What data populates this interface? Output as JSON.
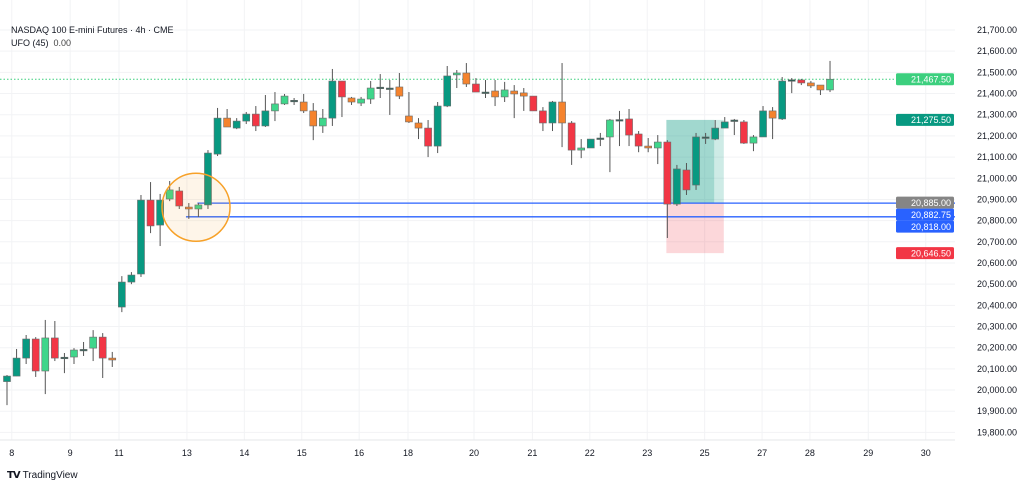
{
  "legend": {
    "title": "NASDAQ 100 E-mini Futures · 4h · CME",
    "indicator": "UFO (45)",
    "indicator_value": "0.00"
  },
  "branding": {
    "name": "TradingView"
  },
  "colors": {
    "strong_up": "#089981",
    "weak_up": "#3fd68b",
    "strong_down": "#f23645",
    "weak_down": "#f5832d",
    "neutral": "#2d5e55",
    "blue_line": "#2962ff",
    "circle": "#f7a128",
    "last_price": "#3ccf7e"
  },
  "chart_data": {
    "type": "candlestick",
    "title": "NASDAQ 100 E-mini Futures · 4h · CME",
    "ylim": [
      19750,
      21750
    ],
    "grid": true,
    "y_ticks": [
      "21,700.00",
      "21,600.00",
      "21,500.00",
      "21,400.00",
      "21,300.00",
      "21,200.00",
      "21,100.00",
      "21,000.00",
      "20,900.00",
      "20,800.00",
      "20,700.00",
      "20,600.00",
      "20,500.00",
      "20,400.00",
      "20,300.00",
      "20,200.00",
      "20,100.00",
      "20,000.00",
      "19,900.00",
      "19,800.00"
    ],
    "y_tick_values": [
      21700,
      21600,
      21500,
      21400,
      21300,
      21200,
      21100,
      21000,
      20900,
      20800,
      20700,
      20600,
      20500,
      20400,
      20300,
      20200,
      20100,
      20000,
      19900,
      19800
    ],
    "x_ticks": [
      {
        "label": "8",
        "bar": 0.5
      },
      {
        "label": "9",
        "bar": 6.6
      },
      {
        "label": "11",
        "bar": 11.7
      },
      {
        "label": "13",
        "bar": 18.8
      },
      {
        "label": "14",
        "bar": 24.8
      },
      {
        "label": "15",
        "bar": 30.8
      },
      {
        "label": "16",
        "bar": 36.8
      },
      {
        "label": "18",
        "bar": 41.9
      },
      {
        "label": "20",
        "bar": 48.8
      },
      {
        "label": "21",
        "bar": 54.9
      },
      {
        "label": "22",
        "bar": 60.9
      },
      {
        "label": "23",
        "bar": 66.9
      },
      {
        "label": "25",
        "bar": 72.9
      },
      {
        "label": "27",
        "bar": 78.9
      },
      {
        "label": "28",
        "bar": 83.9
      },
      {
        "label": "29",
        "bar": 90
      },
      {
        "label": "30",
        "bar": 96
      }
    ],
    "candle_fields": [
      "open",
      "high",
      "low",
      "close",
      "ufo_color"
    ],
    "candles": [
      [
        20040,
        20071,
        19929,
        20066,
        "strong_up"
      ],
      [
        20066,
        20194,
        20066,
        20151,
        "strong_up"
      ],
      [
        20151,
        20260,
        20123,
        20241,
        "strong_up"
      ],
      [
        20241,
        20250,
        20062,
        20090,
        "strong_down"
      ],
      [
        20090,
        20331,
        19981,
        20246,
        "weak_up"
      ],
      [
        20246,
        20326,
        20137,
        20151,
        "strong_down"
      ],
      [
        20151,
        20175,
        20080,
        20155,
        "neutral"
      ],
      [
        20156,
        20198,
        20123,
        20189,
        "weak_up"
      ],
      [
        20189,
        20227,
        20161,
        20192,
        "neutral"
      ],
      [
        20198,
        20283,
        20137,
        20250,
        "weak_up"
      ],
      [
        20250,
        20269,
        20057,
        20151,
        "strong_down"
      ],
      [
        20151,
        20180,
        20109,
        20142,
        "weak_down"
      ],
      [
        20392,
        20538,
        20368,
        20510,
        "strong_up"
      ],
      [
        20510,
        20557,
        20500,
        20543,
        "strong_up"
      ],
      [
        20548,
        20921,
        20534,
        20897,
        "strong_up"
      ],
      [
        20897,
        20982,
        20741,
        20775,
        "strong_down"
      ],
      [
        20779,
        20926,
        20680,
        20897,
        "strong_up"
      ],
      [
        20902,
        20987,
        20892,
        20945,
        "weak_up"
      ],
      [
        20940,
        20959,
        20855,
        20869,
        "strong_down"
      ],
      [
        20864,
        20883,
        20808,
        20855,
        "weak_down"
      ],
      [
        20855,
        20883,
        20817,
        20874,
        "weak_up"
      ],
      [
        20874,
        21133,
        20855,
        21119,
        "strong_up"
      ],
      [
        21114,
        21332,
        21105,
        21284,
        "strong_up"
      ],
      [
        21284,
        21327,
        21242,
        21242,
        "weak_down"
      ],
      [
        21237,
        21284,
        21232,
        21270,
        "strong_up"
      ],
      [
        21270,
        21313,
        21256,
        21303,
        "strong_up"
      ],
      [
        21303,
        21341,
        21223,
        21247,
        "strong_down"
      ],
      [
        21247,
        21393,
        21242,
        21318,
        "strong_up"
      ],
      [
        21318,
        21407,
        21270,
        21351,
        "weak_up"
      ],
      [
        21351,
        21398,
        21346,
        21388,
        "weak_up"
      ],
      [
        21365,
        21379,
        21346,
        21368,
        "neutral"
      ],
      [
        21360,
        21398,
        21308,
        21318,
        "weak_down"
      ],
      [
        21318,
        21355,
        21180,
        21247,
        "weak_down"
      ],
      [
        21247,
        21327,
        21214,
        21284,
        "weak_up"
      ],
      [
        21284,
        21516,
        21247,
        21459,
        "strong_up"
      ],
      [
        21459,
        21459,
        21289,
        21384,
        "strong_down"
      ],
      [
        21379,
        21384,
        21346,
        21360,
        "weak_down"
      ],
      [
        21355,
        21384,
        21341,
        21374,
        "weak_up"
      ],
      [
        21374,
        21459,
        21351,
        21426,
        "weak_up"
      ],
      [
        21426,
        21492,
        21379,
        21430,
        "neutral"
      ],
      [
        21426,
        21464,
        21299,
        21422,
        "neutral"
      ],
      [
        21431,
        21497,
        21374,
        21388,
        "weak_down"
      ],
      [
        21294,
        21407,
        21261,
        21266,
        "weak_down"
      ],
      [
        21261,
        21284,
        21185,
        21237,
        "weak_down"
      ],
      [
        21237,
        21275,
        21100,
        21152,
        "strong_down"
      ],
      [
        21152,
        21360,
        21119,
        21341,
        "strong_up"
      ],
      [
        21341,
        21530,
        21336,
        21483,
        "strong_up"
      ],
      [
        21488,
        21511,
        21426,
        21497,
        "weak_up"
      ],
      [
        21497,
        21544,
        21431,
        21445,
        "weak_down"
      ],
      [
        21445,
        21473,
        21407,
        21407,
        "strong_down"
      ],
      [
        21407,
        21464,
        21379,
        21403,
        "neutral"
      ],
      [
        21412,
        21464,
        21341,
        21384,
        "weak_down"
      ],
      [
        21384,
        21455,
        21360,
        21417,
        "weak_up"
      ],
      [
        21412,
        21440,
        21284,
        21398,
        "weak_down"
      ],
      [
        21403,
        21426,
        21318,
        21388,
        "weak_down"
      ],
      [
        21388,
        21388,
        21318,
        21318,
        "strong_down"
      ],
      [
        21318,
        21336,
        21223,
        21261,
        "strong_down"
      ],
      [
        21261,
        21365,
        21223,
        21360,
        "strong_up"
      ],
      [
        21360,
        21544,
        21147,
        21261,
        "weak_down"
      ],
      [
        21261,
        21270,
        21063,
        21133,
        "strong_down"
      ],
      [
        21133,
        21185,
        21095,
        21143,
        "weak_up"
      ],
      [
        21143,
        21185,
        21143,
        21185,
        "strong_up"
      ],
      [
        21185,
        21214,
        21152,
        21190,
        "neutral"
      ],
      [
        21195,
        21280,
        21029,
        21275,
        "weak_up"
      ],
      [
        21272,
        21318,
        21152,
        21277,
        "neutral"
      ],
      [
        21280,
        21327,
        21152,
        21204,
        "strong_down"
      ],
      [
        21209,
        21223,
        21123,
        21152,
        "strong_down"
      ],
      [
        21152,
        21190,
        21123,
        21143,
        "weak_down"
      ],
      [
        21143,
        21204,
        21067,
        21171,
        "weak_up"
      ],
      [
        21171,
        21180,
        20718,
        20878,
        "strong_down"
      ],
      [
        20878,
        21063,
        20869,
        21044,
        "strong_up"
      ],
      [
        21039,
        21072,
        20921,
        20945,
        "strong_down"
      ],
      [
        20968,
        21214,
        20945,
        21195,
        "strong_up"
      ],
      [
        21190,
        21214,
        21162,
        21195,
        "neutral"
      ],
      [
        21185,
        21275,
        21180,
        21237,
        "strong_up"
      ],
      [
        21237,
        21289,
        21237,
        21266,
        "strong_up"
      ],
      [
        21270,
        21280,
        21204,
        21275,
        "neutral"
      ],
      [
        21266,
        21275,
        21162,
        21166,
        "strong_down"
      ],
      [
        21166,
        21204,
        21128,
        21195,
        "weak_up"
      ],
      [
        21195,
        21341,
        21195,
        21318,
        "strong_up"
      ],
      [
        21318,
        21336,
        21185,
        21284,
        "weak_down"
      ],
      [
        21280,
        21478,
        21275,
        21459,
        "strong_up"
      ],
      [
        21462,
        21473,
        21402,
        21465,
        "neutral"
      ],
      [
        21464,
        21469,
        21440,
        21450,
        "strong_down"
      ],
      [
        21450,
        21459,
        21426,
        21436,
        "weak_down"
      ],
      [
        21440,
        21440,
        21393,
        21417,
        "weak_down"
      ],
      [
        21417,
        21554,
        21407,
        21467.5,
        "weak_up"
      ]
    ],
    "last_price": {
      "value": 21467.5,
      "label": "21,467.50"
    },
    "horizontal_lines": [
      {
        "value": 20882.75,
        "label": "20,882.75",
        "from_bar": 19.9
      },
      {
        "value": 20818.0,
        "label": "20,818.00",
        "from_bar": 18.7
      }
    ],
    "long_position": {
      "from_bar": 68.9,
      "to_bar": 74.9,
      "solid_to_bar": 73.9,
      "entry": {
        "value": 20885.0,
        "label": "20,885.00"
      },
      "target": {
        "value": 21275.5,
        "label": "21,275.50"
      },
      "stop": {
        "value": 20646.5,
        "label": "20,646.50"
      }
    },
    "circle_marker": {
      "bar": 19.75,
      "price": 20863
    }
  }
}
